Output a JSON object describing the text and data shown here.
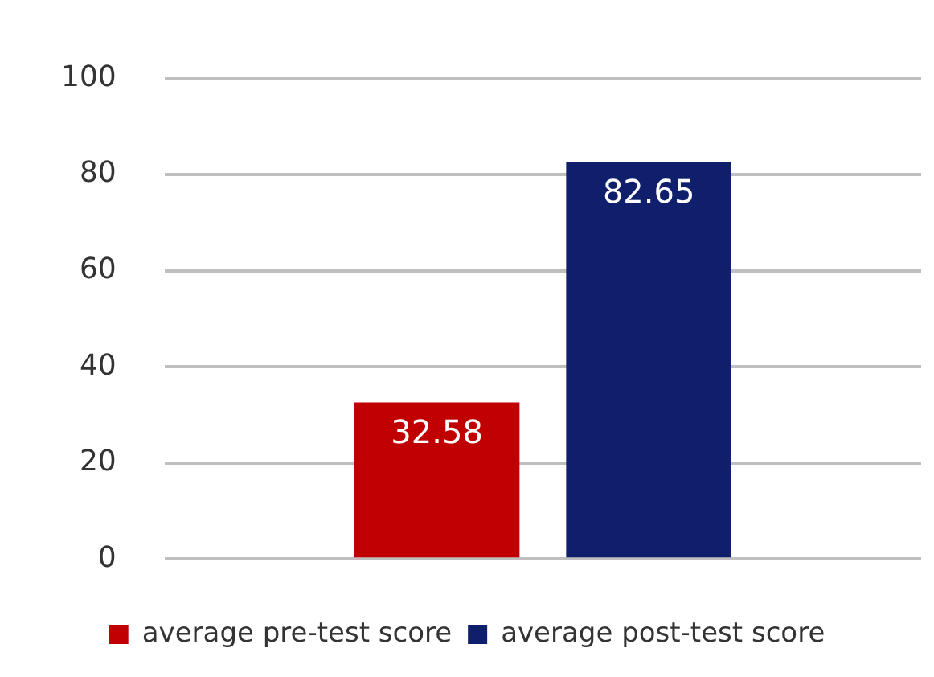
{
  "chart_data": {
    "type": "bar",
    "categories": [
      null
    ],
    "series": [
      {
        "name": "average pre-test score",
        "color": "#c00000",
        "values": [
          32.58
        ]
      },
      {
        "name": "average post-test score",
        "color": "#0f1f6b",
        "values": [
          82.65
        ]
      }
    ],
    "ylim": [
      0,
      100
    ],
    "yticks": [
      0,
      20,
      40,
      60,
      80,
      100
    ],
    "grid": "y",
    "legend": "bottom",
    "data_labels": true
  }
}
